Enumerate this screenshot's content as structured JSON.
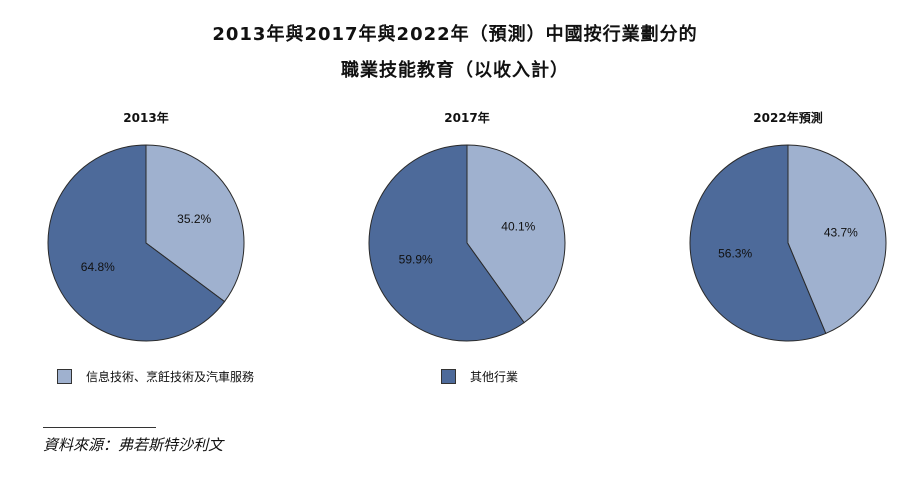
{
  "title_line1": "2013年與2017年與2022年（預測）中國按行業劃分的",
  "title_line2": "職業技能教育（以收入計）",
  "colors": {
    "light": "#9fb1cf",
    "dark": "#4d6a9a",
    "edge": "#2a2a2a"
  },
  "chart_data": [
    {
      "type": "pie",
      "title": "2013年",
      "slices": [
        {
          "name": "信息技術、烹飪技術及汽車服務",
          "value": 35.2,
          "label": "35.2%"
        },
        {
          "name": "其他行業",
          "value": 64.8,
          "label": "64.8%"
        }
      ]
    },
    {
      "type": "pie",
      "title": "2017年",
      "slices": [
        {
          "name": "信息技術、烹飪技術及汽車服務",
          "value": 40.1,
          "label": "40.1%"
        },
        {
          "name": "其他行業",
          "value": 59.9,
          "label": "59.9%"
        }
      ]
    },
    {
      "type": "pie",
      "title": "2022年預測",
      "slices": [
        {
          "name": "信息技術、烹飪技術及汽車服務",
          "value": 43.7,
          "label": "43.7%"
        },
        {
          "name": "其他行業",
          "value": 56.3,
          "label": "56.3%"
        }
      ]
    }
  ],
  "legend": [
    {
      "label": "信息技術、烹飪技術及汽車服務",
      "color": "light"
    },
    {
      "label": "其他行業",
      "color": "dark"
    }
  ],
  "source": "資料來源：弗若斯特沙利文"
}
